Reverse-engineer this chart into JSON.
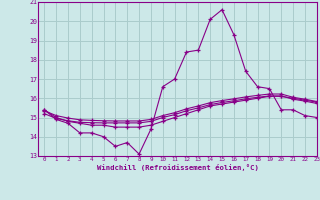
{
  "title": "",
  "xlabel": "Windchill (Refroidissement éolien,°C)",
  "xlim": [
    -0.5,
    23
  ],
  "ylim": [
    13,
    21
  ],
  "yticks": [
    13,
    14,
    15,
    16,
    17,
    18,
    19,
    20,
    21
  ],
  "xticks": [
    0,
    1,
    2,
    3,
    4,
    5,
    6,
    7,
    8,
    9,
    10,
    11,
    12,
    13,
    14,
    15,
    16,
    17,
    18,
    19,
    20,
    21,
    22,
    23
  ],
  "bg_color": "#cce8e8",
  "grid_color": "#aacccc",
  "line_color": "#880088",
  "hours": [
    0,
    1,
    2,
    3,
    4,
    5,
    6,
    7,
    8,
    9,
    10,
    11,
    12,
    13,
    14,
    15,
    16,
    17,
    18,
    19,
    20,
    21,
    22,
    23
  ],
  "series1": [
    15.4,
    14.9,
    14.7,
    14.2,
    14.2,
    14.0,
    13.5,
    13.7,
    13.1,
    14.4,
    16.6,
    17.0,
    18.4,
    18.5,
    20.1,
    20.6,
    19.3,
    17.4,
    16.6,
    16.5,
    15.4,
    15.4,
    15.1,
    15.0
  ],
  "series2": [
    15.4,
    15.0,
    14.8,
    14.7,
    14.6,
    14.6,
    14.5,
    14.5,
    14.5,
    14.6,
    14.8,
    15.0,
    15.2,
    15.4,
    15.6,
    15.7,
    15.8,
    15.9,
    16.0,
    16.1,
    16.1,
    16.0,
    15.9,
    15.8
  ],
  "series3": [
    15.35,
    15.1,
    14.97,
    14.88,
    14.85,
    14.83,
    14.82,
    14.82,
    14.82,
    14.9,
    15.1,
    15.25,
    15.45,
    15.6,
    15.77,
    15.88,
    15.97,
    16.07,
    16.15,
    16.22,
    16.22,
    16.05,
    15.95,
    15.83
  ],
  "series4": [
    15.2,
    14.95,
    14.83,
    14.75,
    14.73,
    14.72,
    14.72,
    14.72,
    14.72,
    14.8,
    15.0,
    15.15,
    15.35,
    15.5,
    15.67,
    15.78,
    15.87,
    15.97,
    16.05,
    16.12,
    16.12,
    15.95,
    15.85,
    15.73
  ]
}
